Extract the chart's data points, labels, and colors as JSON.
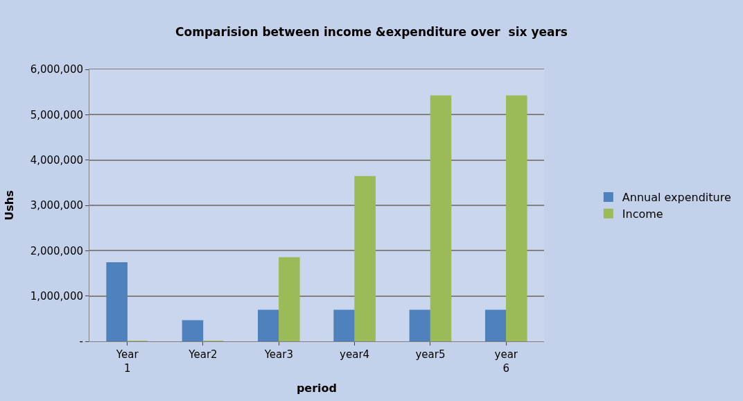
{
  "chart_data": {
    "type": "bar",
    "title": "Comparision between income &expenditure over  six years",
    "xlabel": "period",
    "ylabel": "Ushs",
    "categories": [
      "Year 1",
      "Year2",
      "Year3",
      "year4",
      "year5",
      "year 6"
    ],
    "series": [
      {
        "name": "Annual expenditure",
        "color": "#4f81bd",
        "values": [
          1730000,
          450000,
          680000,
          680000,
          680000,
          680000
        ]
      },
      {
        "name": "Income",
        "color": "#9bbb59",
        "values": [
          0,
          0,
          1840000,
          3630000,
          5410000,
          5410000
        ]
      }
    ],
    "ylim": [
      0,
      6000000
    ],
    "yticks": [
      {
        "value": 0,
        "label": "-"
      },
      {
        "value": 1000000,
        "label": "1,000,000"
      },
      {
        "value": 2000000,
        "label": "2,000,000"
      },
      {
        "value": 3000000,
        "label": "3,000,000"
      },
      {
        "value": 4000000,
        "label": "4,000,000"
      },
      {
        "value": 5000000,
        "label": "5,000,000"
      },
      {
        "value": 6000000,
        "label": "6,000,000"
      }
    ],
    "grid": "y",
    "legend": "right"
  }
}
